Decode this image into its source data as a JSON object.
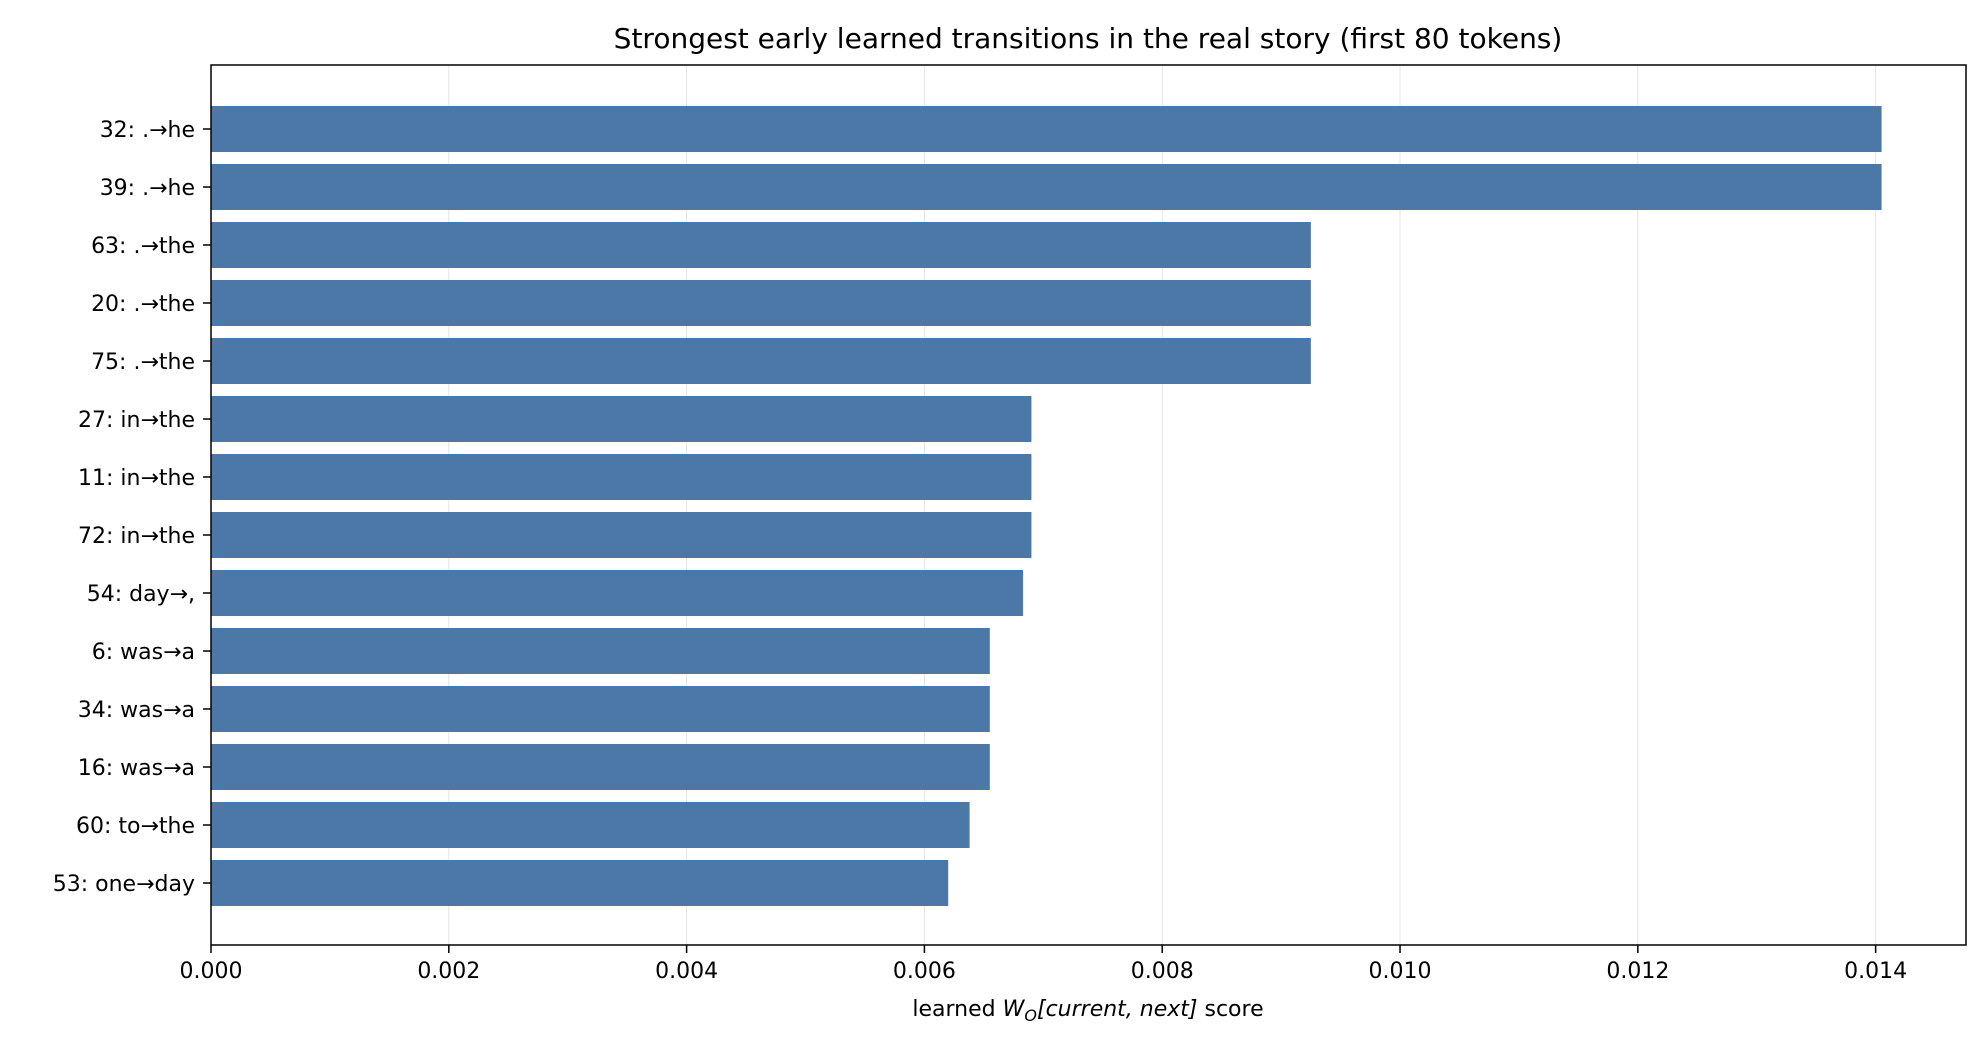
{
  "chart_data": {
    "type": "bar",
    "orientation": "horizontal",
    "title": "Strongest early learned transitions in the real story (first 80 tokens)",
    "xlabel_parts": {
      "prefix": "learned ",
      "var": "W",
      "sub": "O",
      "args": "[current, next]",
      "suffix": " score"
    },
    "ylabel": "",
    "categories": [
      "32: .→he",
      "39: .→he",
      "63: .→the",
      "20: .→the",
      "75: .→the",
      "27: in→the",
      "11: in→the",
      "72: in→the",
      "54: day→,",
      "6: was→a",
      "34: was→a",
      "16: was→a",
      "60: to→the",
      "53: one→day"
    ],
    "values": [
      0.01405,
      0.01405,
      0.00925,
      0.00925,
      0.00925,
      0.0069,
      0.0069,
      0.0069,
      0.00683,
      0.00655,
      0.00655,
      0.00655,
      0.00638,
      0.0062
    ],
    "xlim": [
      0,
      0.01476
    ],
    "xticks": [
      0.0,
      0.002,
      0.004,
      0.006,
      0.008,
      0.01,
      0.012,
      0.014
    ],
    "xtick_labels": [
      "0.000",
      "0.002",
      "0.004",
      "0.006",
      "0.008",
      "0.010",
      "0.012",
      "0.014"
    ],
    "grid": "x",
    "legend": "none",
    "bar_color": "#4c78a8",
    "grid_color": "#e6e6e6"
  }
}
